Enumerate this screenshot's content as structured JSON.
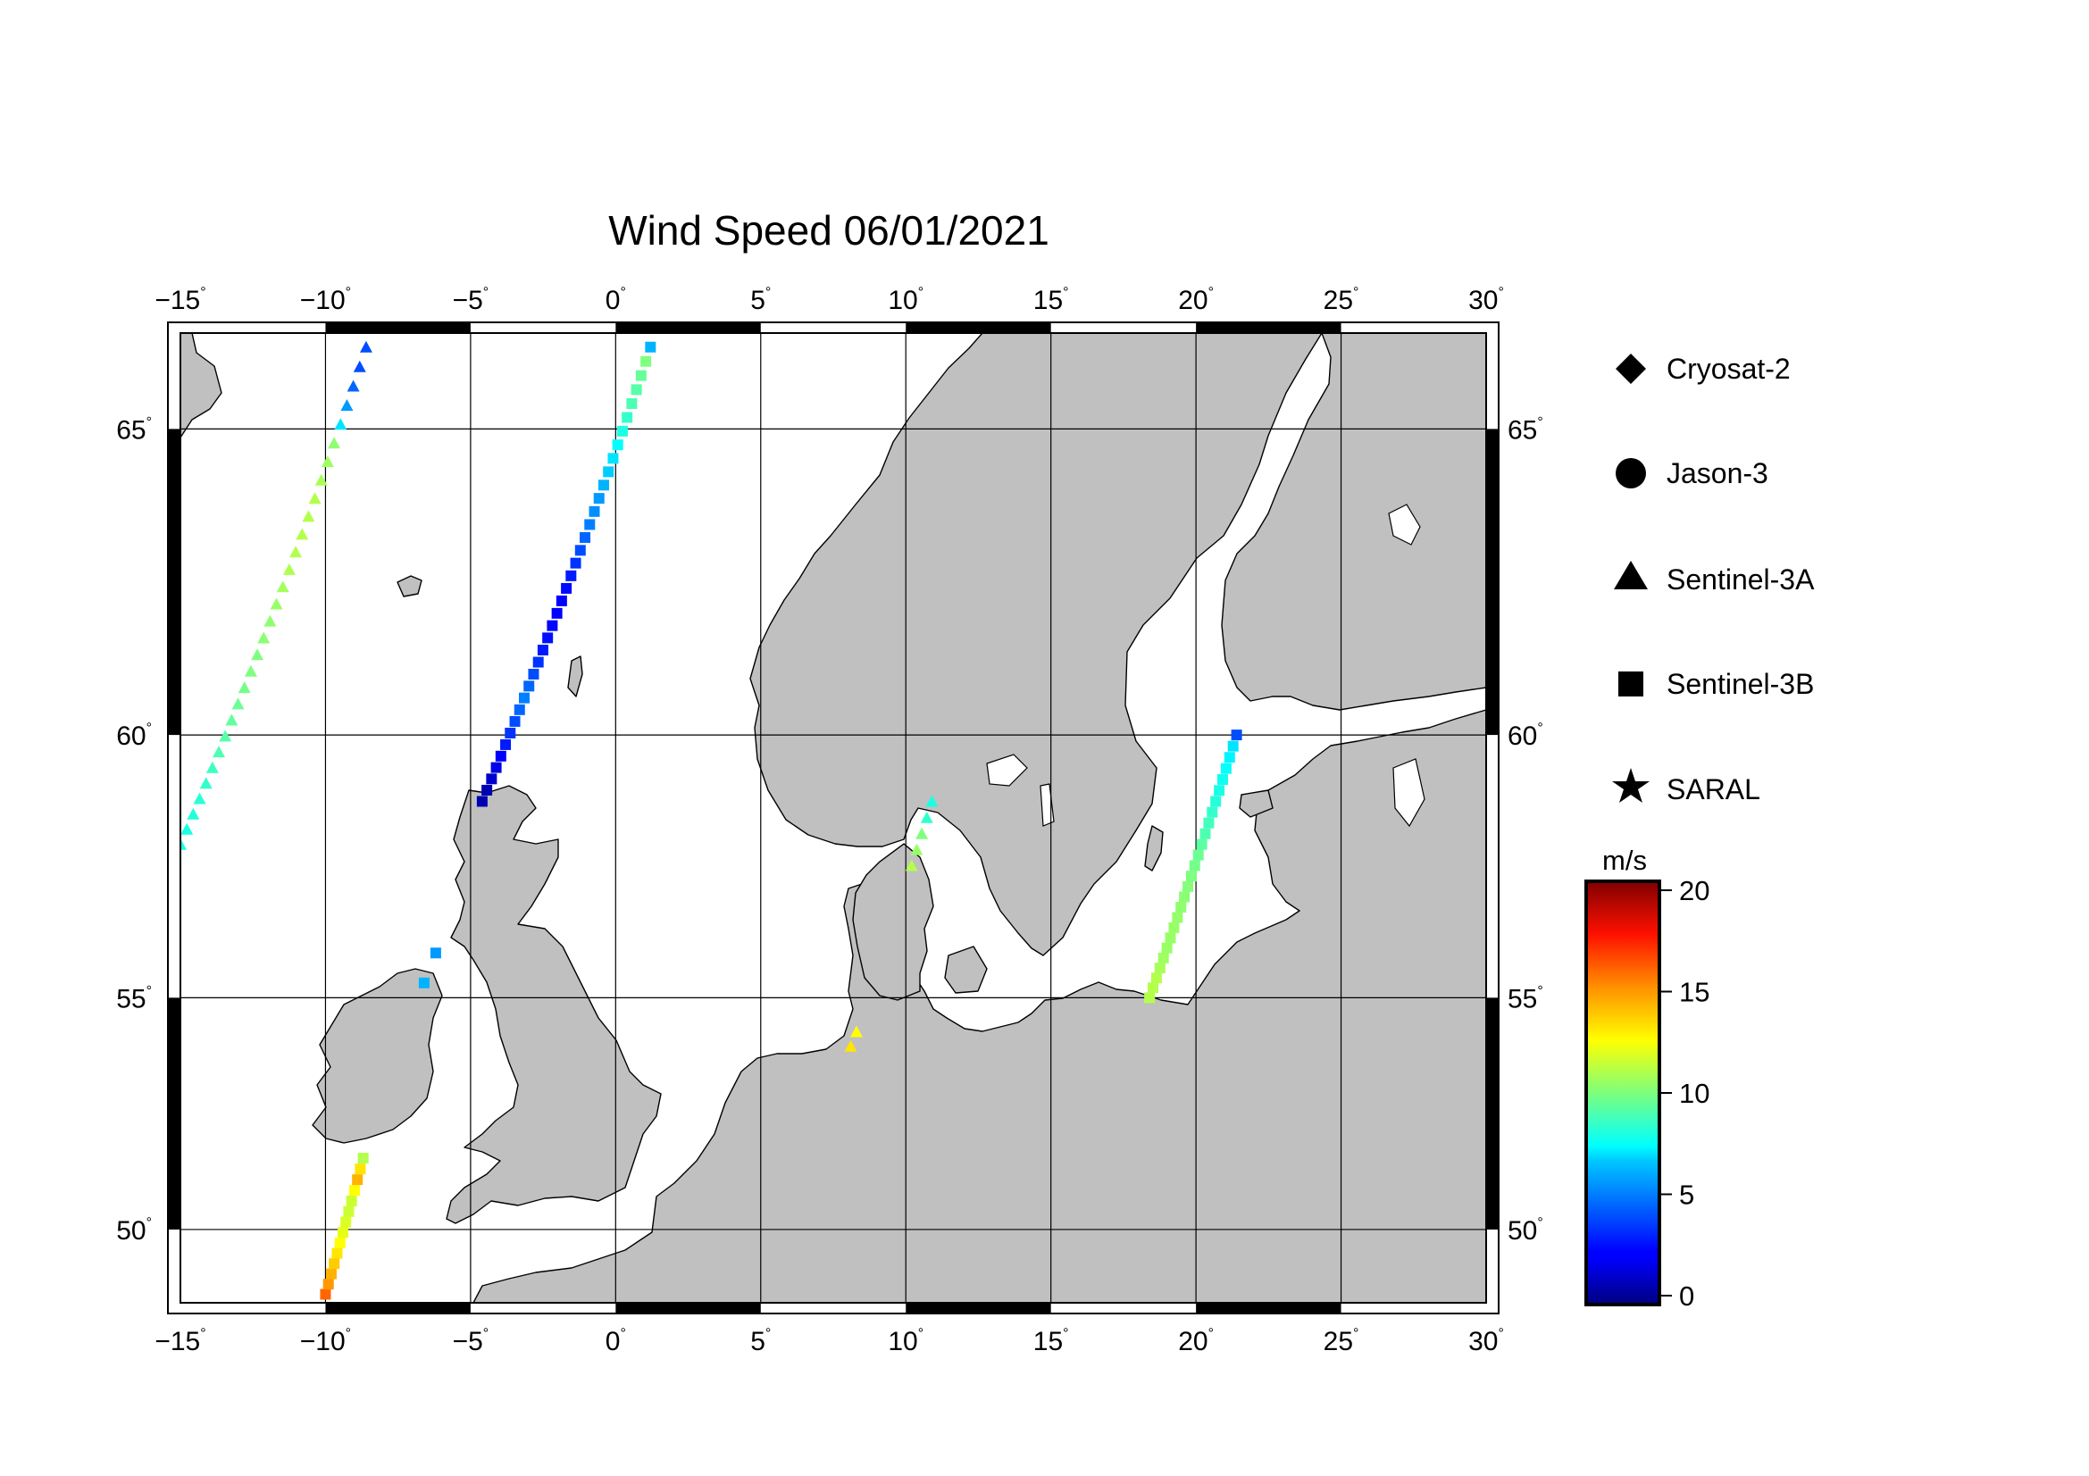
{
  "title": "Wind Speed 06/01/2021",
  "colors": {
    "land": "#c0c0c0",
    "sea": "#ffffff",
    "grid": "#000000",
    "coast": "#000000"
  },
  "map": {
    "lon_range": [
      -15,
      30
    ],
    "lat_range": [
      48.3,
      66.4
    ],
    "lon_ticks": [
      {
        "value": -15,
        "label": "−15"
      },
      {
        "value": -10,
        "label": "−10"
      },
      {
        "value": -5,
        "label": "−5"
      },
      {
        "value": 0,
        "label": "0"
      },
      {
        "value": 5,
        "label": "5"
      },
      {
        "value": 10,
        "label": "10"
      },
      {
        "value": 15,
        "label": "15"
      },
      {
        "value": 20,
        "label": "20"
      },
      {
        "value": 25,
        "label": "25"
      },
      {
        "value": 30,
        "label": "30"
      }
    ],
    "lat_ticks": [
      {
        "value": 50,
        "label": "50"
      },
      {
        "value": 55,
        "label": "55"
      },
      {
        "value": 60,
        "label": "60"
      },
      {
        "value": 65,
        "label": "65"
      }
    ],
    "degree_mark": "°"
  },
  "legend": [
    {
      "label": "Cryosat-2",
      "icon": "diamond-icon"
    },
    {
      "label": "Jason-3",
      "icon": "circle-icon"
    },
    {
      "label": "Sentinel-3A",
      "icon": "triangle-icon"
    },
    {
      "label": "Sentinel-3B",
      "icon": "square-icon"
    },
    {
      "label": "SARAL",
      "icon": "star-icon"
    }
  ],
  "colorbar": {
    "unit": "m/s",
    "range": [
      0,
      20
    ],
    "ticks": [
      {
        "value": 0,
        "label": "0"
      },
      {
        "value": 5,
        "label": "5"
      },
      {
        "value": 10,
        "label": "10"
      },
      {
        "value": 15,
        "label": "15"
      },
      {
        "value": 20,
        "label": "20"
      }
    ]
  },
  "tracks": [
    {
      "satellite": "Sentinel-3A",
      "marker": "triangle",
      "start": [
        -15.0,
        58.0
      ],
      "end": [
        -8.6,
        66.2
      ],
      "n": 30,
      "speeds": [
        8,
        8,
        8.2,
        8.3,
        8.5,
        8.7,
        9,
        9.2,
        9.4,
        9.6,
        9.8,
        10,
        10,
        10.2,
        10.3,
        10.5,
        10.7,
        10.9,
        11,
        11,
        11,
        11,
        10.8,
        10.6,
        10.3,
        7,
        5.5,
        4.5,
        4,
        4
      ]
    },
    {
      "satellite": "Sentinel-3B",
      "marker": "square",
      "start": [
        -4.6,
        58.8
      ],
      "end": [
        1.2,
        66.2
      ],
      "n": 37,
      "speeds": [
        1,
        1,
        1.5,
        2,
        2.5,
        3,
        3.5,
        4,
        4.5,
        5,
        4.5,
        4,
        3.5,
        3,
        2.8,
        2.6,
        2.5,
        2.5,
        2.7,
        3,
        3.5,
        4,
        4.5,
        5,
        5.3,
        5.5,
        6,
        6.5,
        7,
        7.5,
        8,
        8.5,
        9,
        9.2,
        9.5,
        10,
        6
      ]
    },
    {
      "satellite": "Sentinel-3B",
      "marker": "square",
      "start": [
        -6.6,
        55.3
      ],
      "end": [
        -6.2,
        55.9
      ],
      "n": 2,
      "speeds": [
        6,
        5.5
      ]
    },
    {
      "satellite": "Sentinel-3B",
      "marker": "square",
      "start": [
        -10.0,
        48.5
      ],
      "end": [
        -8.7,
        51.6
      ],
      "n": 14,
      "speeds": [
        15.5,
        14.5,
        14,
        13.5,
        13,
        12.5,
        12,
        11.8,
        11.5,
        11.5,
        12.5,
        14,
        13,
        11
      ]
    },
    {
      "satellite": "Sentinel-3A",
      "marker": "triangle",
      "start": [
        8.1,
        54.0
      ],
      "end": [
        8.3,
        54.3
      ],
      "n": 2,
      "speeds": [
        13,
        12.5
      ]
    },
    {
      "satellite": "Sentinel-3A",
      "marker": "triangle",
      "start": [
        10.2,
        57.6
      ],
      "end": [
        10.9,
        58.8
      ],
      "n": 5,
      "speeds": [
        11,
        10.5,
        10,
        8.5,
        8
      ]
    },
    {
      "satellite": "Sentinel-3B",
      "marker": "square",
      "start": [
        18.4,
        55.0
      ],
      "end": [
        21.4,
        60.0
      ],
      "n": 26,
      "speeds": [
        11,
        11,
        11,
        10.8,
        10.6,
        10.5,
        10.5,
        10.5,
        10.4,
        10.3,
        10.2,
        10.1,
        10,
        9.8,
        9.6,
        9.3,
        9,
        8.8,
        8.5,
        8.2,
        8,
        7.8,
        7.6,
        7.3,
        7,
        4
      ]
    }
  ]
}
